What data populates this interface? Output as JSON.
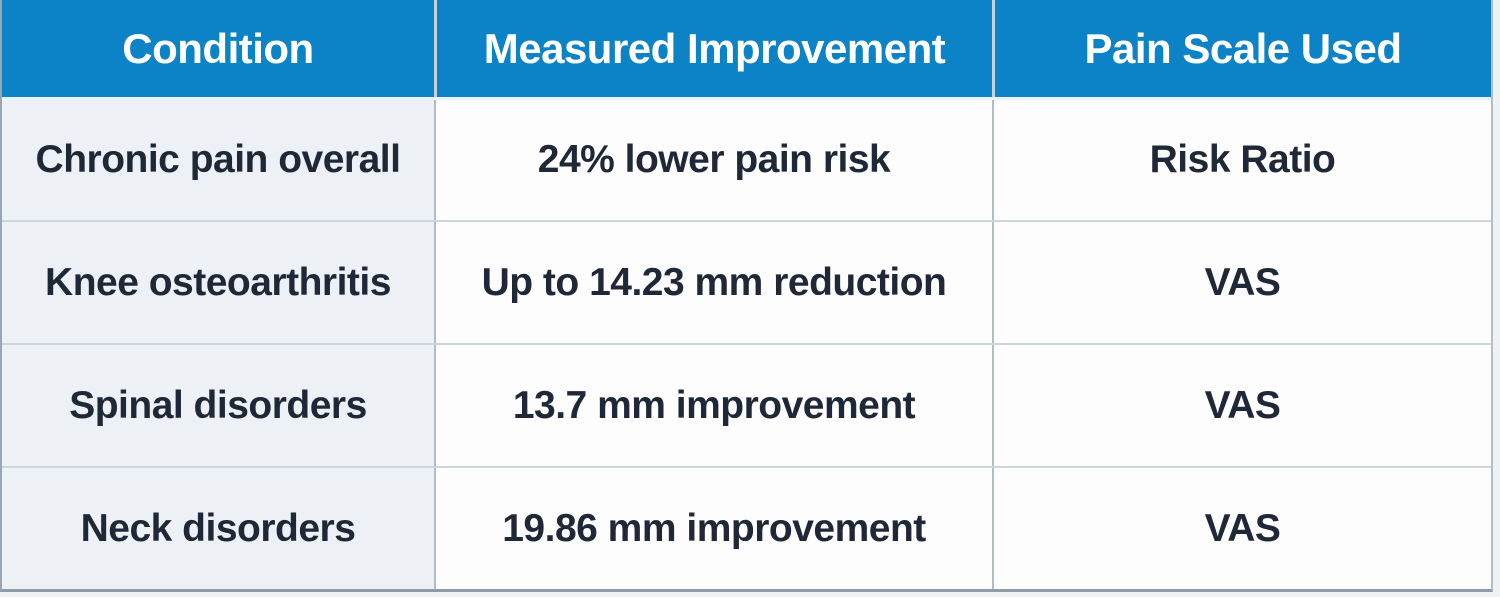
{
  "chart_data": {
    "type": "table",
    "columns": [
      "Condition",
      "Measured Improvement",
      "Pain Scale Used"
    ],
    "rows": [
      [
        "Chronic pain overall",
        "24% lower pain risk",
        "Risk Ratio"
      ],
      [
        "Knee osteoarthritis",
        "Up to 14.23 mm reduction",
        "VAS"
      ],
      [
        "Spinal disorders",
        "13.7 mm improvement",
        "VAS"
      ],
      [
        "Neck disorders",
        "19.86 mm improvement",
        "VAS"
      ]
    ],
    "legend": null,
    "grid": "on"
  },
  "colors": {
    "header_bg": "#0c82c7",
    "header_text": "#ffffff",
    "body_text": "#1e2836",
    "condition_column_bg": "#edf1f6",
    "cell_bg": "#fdfdfe",
    "grid_line": "#ccd4dc",
    "column_line": "#b2bcc7",
    "outer_border": "#8f9aa8"
  }
}
